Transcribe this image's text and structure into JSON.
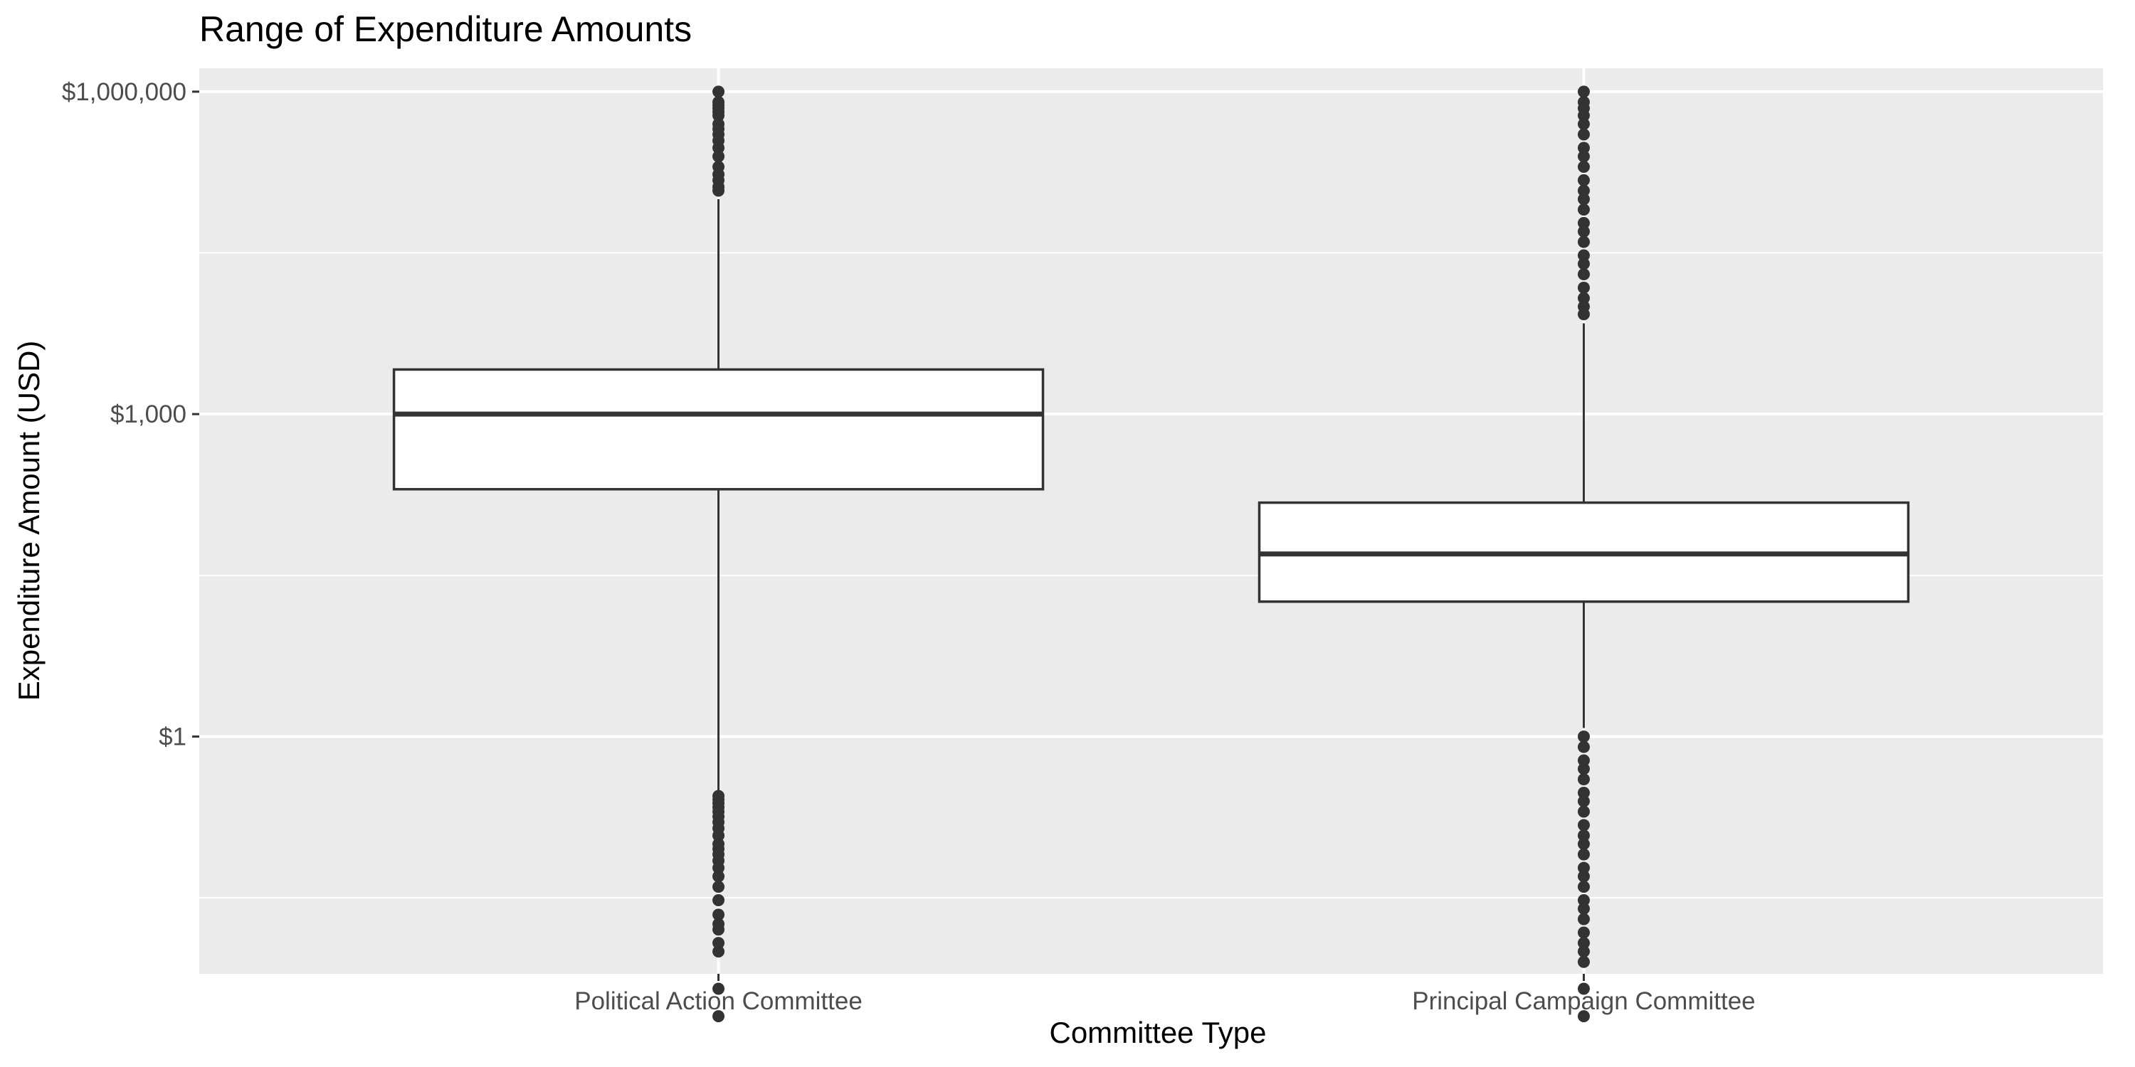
{
  "chart_data": {
    "type": "boxplot",
    "title": "Range of Expenditure Amounts",
    "xlabel": "Committee Type",
    "ylabel": "Expenditure Amount (USD)",
    "y_scale": "log10",
    "ylim": [
      0.0062,
      1650000
    ],
    "y_ticks": [
      {
        "value": 1,
        "label": "$1"
      },
      {
        "value": 1000,
        "label": "$1,000"
      },
      {
        "value": 1000000,
        "label": "$1,000,000"
      }
    ],
    "y_minor_ticks": [
      0.0316,
      31.6,
      31600
    ],
    "grid": true,
    "categories": [
      "Political Action Committee",
      "Principal Campaign Committee"
    ],
    "series": [
      {
        "category": "Political Action Committee",
        "q1": 200,
        "median": 1000,
        "q3": 2600,
        "whisker_low": 0.3,
        "whisker_high": 100000,
        "outliers_high": [
          1000000,
          800000,
          750000,
          700000,
          650000,
          600000,
          500000,
          450000,
          400000,
          350000,
          300000,
          250000,
          200000,
          170000,
          150000,
          130000,
          120000
        ],
        "outliers_low": [
          0.28,
          0.26,
          0.24,
          0.22,
          0.2,
          0.18,
          0.16,
          0.14,
          0.12,
          0.1,
          0.09,
          0.08,
          0.07,
          0.06,
          0.05,
          0.04,
          0.03,
          0.022,
          0.018,
          0.016,
          0.012,
          0.01,
          0.0045,
          0.0025
        ]
      },
      {
        "category": "Principal Campaign Committee",
        "q1": 18,
        "median": 50,
        "q3": 150,
        "whisker_low": 1.2,
        "whisker_high": 7000,
        "outliers_high": [
          1000000,
          800000,
          700000,
          600000,
          500000,
          400000,
          300000,
          250000,
          200000,
          150000,
          120000,
          100000,
          80000,
          60000,
          50000,
          40000,
          30000,
          25000,
          20000,
          15000,
          12000,
          10000,
          8500
        ],
        "outliers_low": [
          1,
          0.8,
          0.6,
          0.5,
          0.4,
          0.3,
          0.25,
          0.2,
          0.15,
          0.12,
          0.1,
          0.08,
          0.06,
          0.05,
          0.04,
          0.03,
          0.025,
          0.02,
          0.015,
          0.012,
          0.01,
          0.008,
          0.0045,
          0.0025
        ]
      }
    ]
  }
}
